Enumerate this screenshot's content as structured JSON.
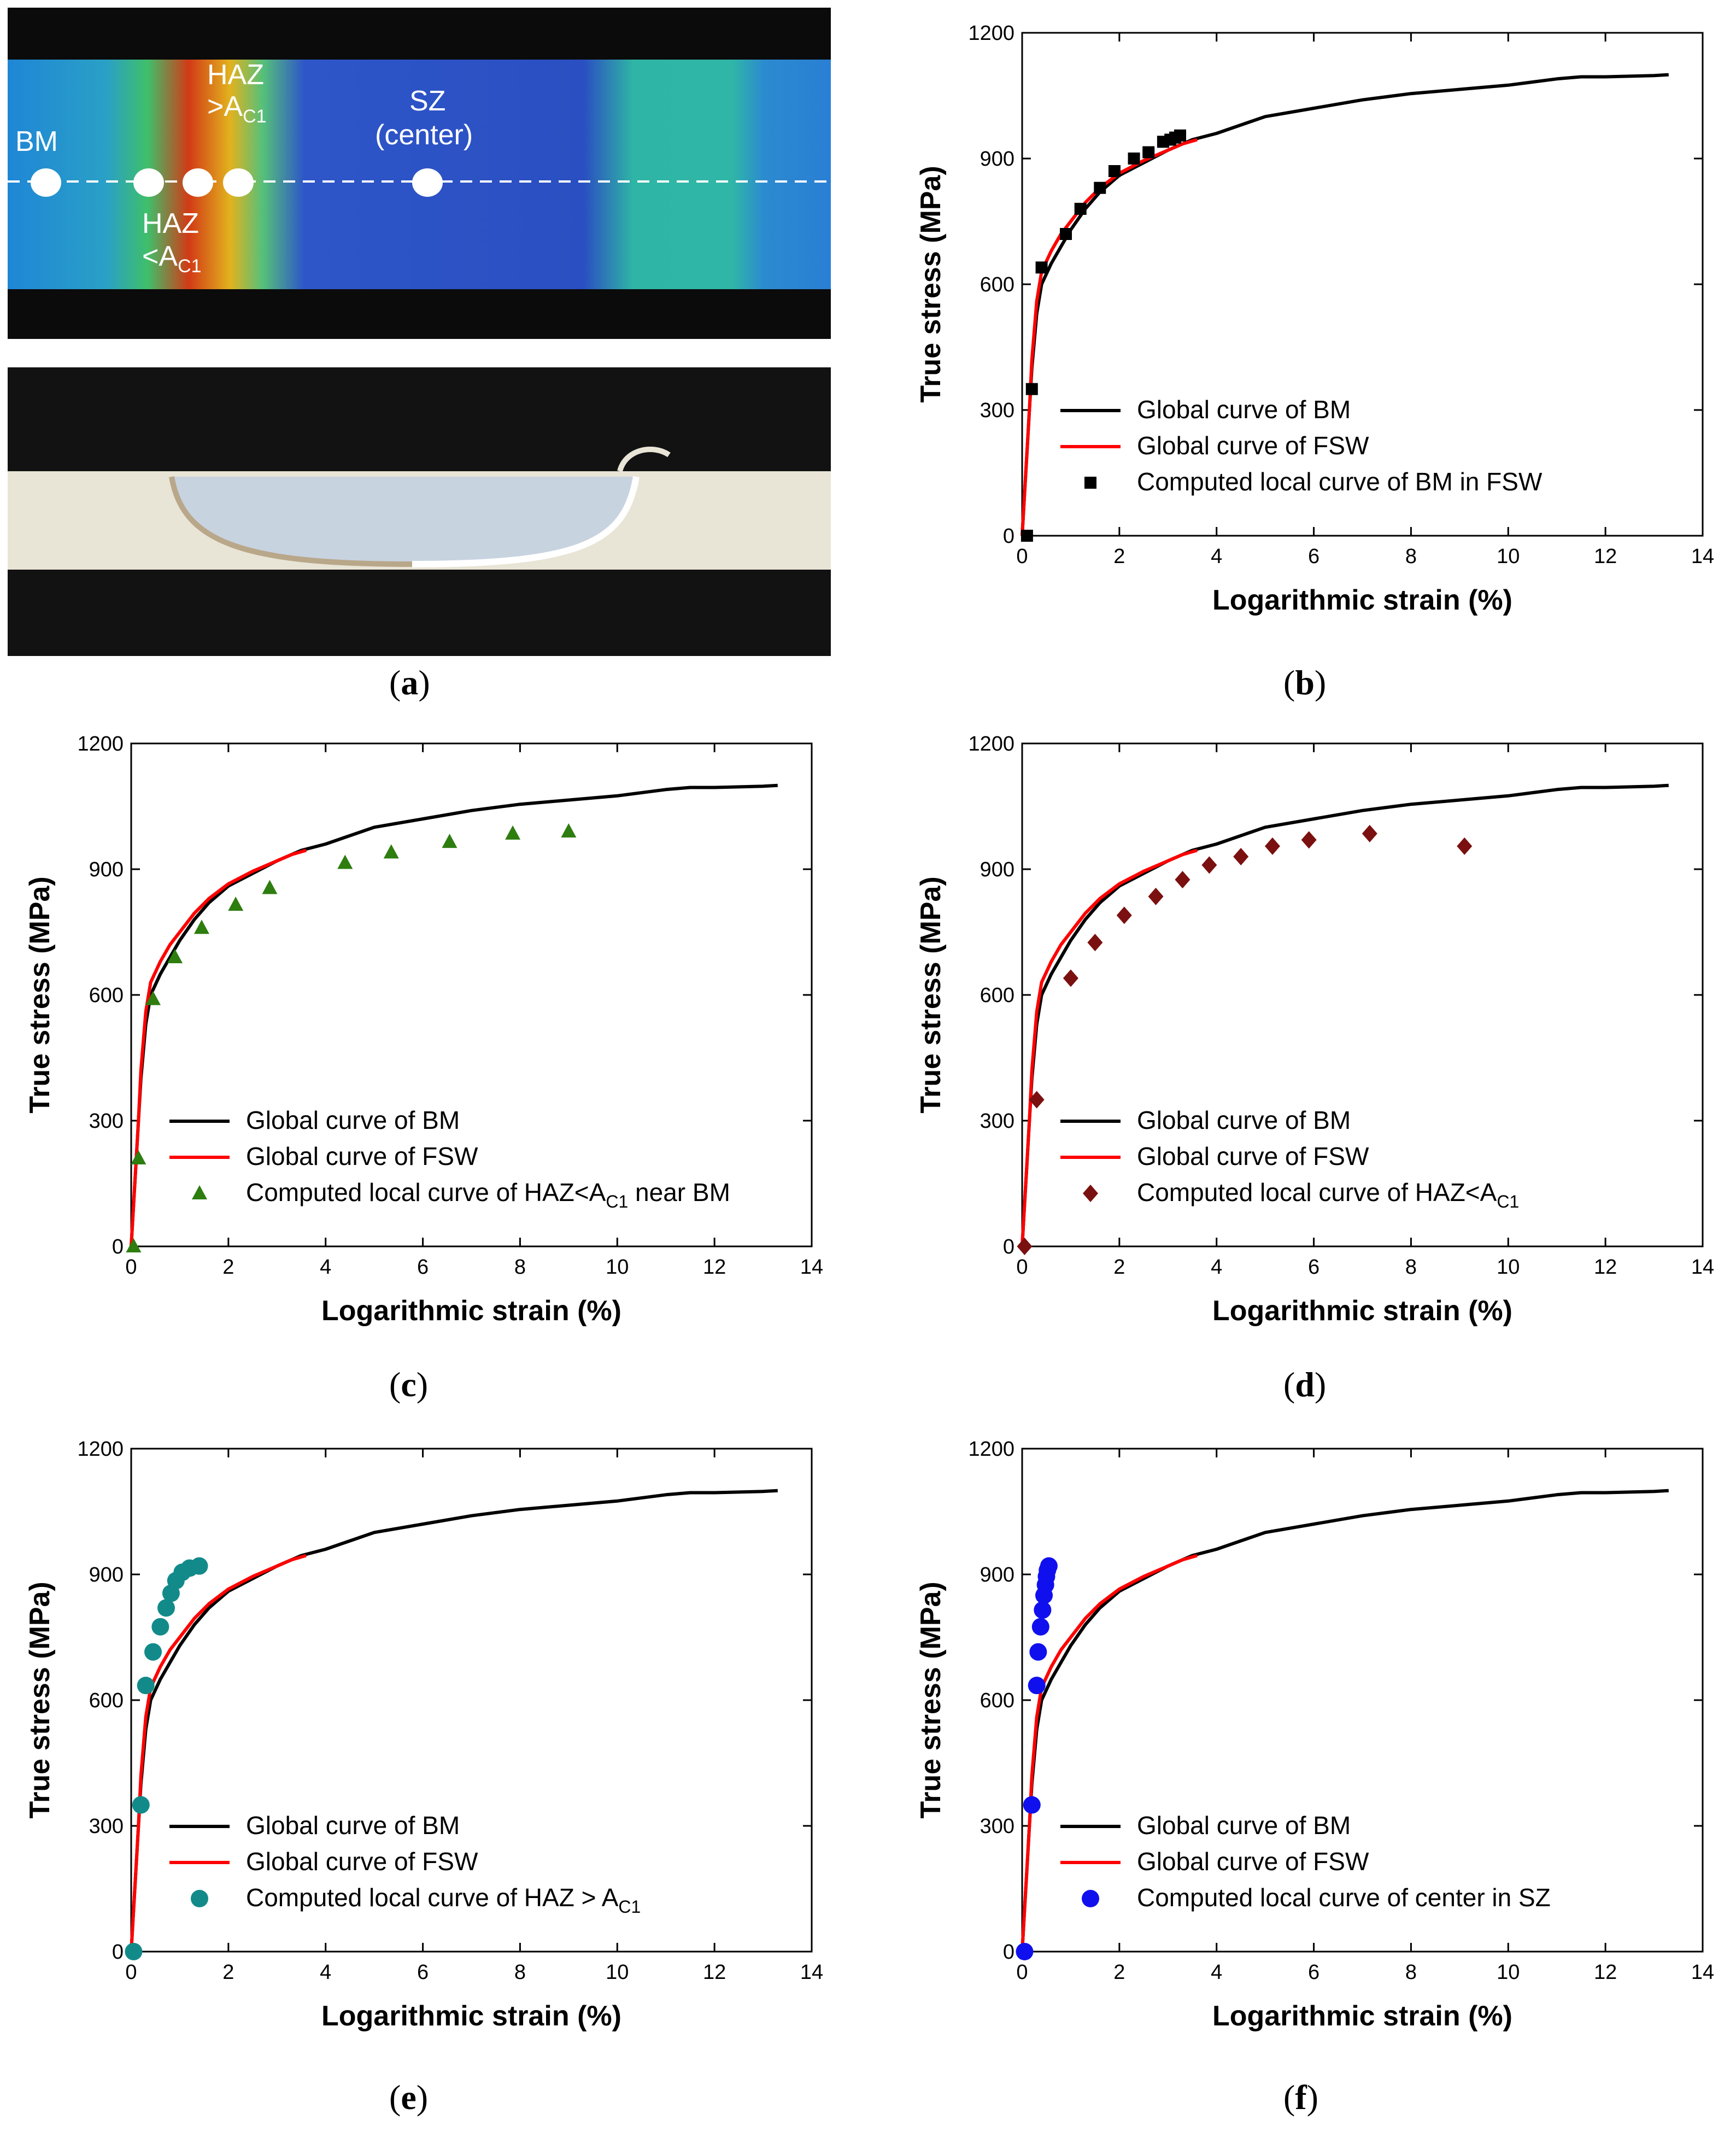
{
  "panel_a": {
    "panel_label": "a",
    "markers": [
      "BM",
      "HAZ <A",
      "HAZ >A",
      "SZ (center)"
    ],
    "labels": {
      "bm": "BM",
      "haz_above_line1": "HAZ",
      "haz_above_line2": ">A",
      "haz_above_sub": "C1",
      "haz_below_line1": "HAZ",
      "haz_below_line2": "<A",
      "haz_below_sub": "C1",
      "sz_line1": "SZ",
      "sz_line2": "(center)"
    }
  },
  "common": {
    "xlabel": "Logarithmic strain (%)",
    "ylabel": "True stress (MPa)",
    "xticks": [
      0,
      2,
      4,
      6,
      8,
      10,
      12,
      14
    ],
    "yticks": [
      0,
      300,
      600,
      900,
      1200
    ],
    "legend_bm": "Global curve of BM",
    "legend_fsw": "Global curve of FSW",
    "color_bm": "#000000",
    "color_fsw": "#ff0000"
  },
  "chart_data": [
    {
      "panel": "b",
      "type": "line",
      "xlabel": "Logarithmic strain (%)",
      "ylabel": "True stress (MPa)",
      "xlim": [
        0,
        14
      ],
      "ylim": [
        0,
        1200
      ],
      "series": [
        {
          "name": "Global curve of BM",
          "style": "line",
          "color": "#000000",
          "x": [
            0,
            0.05,
            0.1,
            0.15,
            0.2,
            0.3,
            0.4,
            0.6,
            0.8,
            1.0,
            1.3,
            1.6,
            2.0,
            2.5,
            3.0,
            3.5,
            4.0,
            5.0,
            6.0,
            7.0,
            8.0,
            9.0,
            10.0,
            11.0,
            11.5,
            12.0,
            13.0,
            13.3
          ],
          "y": [
            0,
            100,
            200,
            300,
            400,
            530,
            600,
            650,
            690,
            730,
            780,
            820,
            860,
            890,
            920,
            945,
            960,
            1000,
            1020,
            1040,
            1055,
            1065,
            1075,
            1090,
            1095,
            1095,
            1098,
            1100
          ]
        },
        {
          "name": "Global curve of FSW",
          "style": "line",
          "color": "#ff0000",
          "x": [
            0,
            0.05,
            0.1,
            0.15,
            0.2,
            0.3,
            0.4,
            0.6,
            0.8,
            1.0,
            1.3,
            1.6,
            2.0,
            2.5,
            3.0,
            3.3,
            3.6
          ],
          "y": [
            0,
            100,
            200,
            300,
            420,
            560,
            630,
            680,
            720,
            750,
            795,
            830,
            865,
            895,
            920,
            935,
            945
          ]
        },
        {
          "name": "Computed local curve of BM in FSW",
          "style": "marker",
          "marker": "square",
          "color": "#000000",
          "x": [
            0.1,
            0.2,
            0.4,
            0.9,
            1.2,
            1.6,
            1.9,
            2.3,
            2.6,
            2.9,
            3.05,
            3.15,
            3.25
          ],
          "y": [
            0,
            350,
            640,
            720,
            780,
            830,
            870,
            900,
            915,
            940,
            945,
            950,
            955
          ]
        }
      ]
    },
    {
      "panel": "c",
      "type": "line",
      "xlabel": "Logarithmic strain (%)",
      "ylabel": "True stress (MPa)",
      "xlim": [
        0,
        14
      ],
      "ylim": [
        0,
        1200
      ],
      "series": [
        {
          "name": "Global curve of BM",
          "style": "line",
          "color": "#000000",
          "x": [
            0,
            0.05,
            0.1,
            0.15,
            0.2,
            0.3,
            0.4,
            0.6,
            0.8,
            1.0,
            1.3,
            1.6,
            2.0,
            2.5,
            3.0,
            3.5,
            4.0,
            5.0,
            6.0,
            7.0,
            8.0,
            9.0,
            10.0,
            11.0,
            11.5,
            12.0,
            13.0,
            13.3
          ],
          "y": [
            0,
            100,
            200,
            300,
            400,
            530,
            600,
            650,
            690,
            730,
            780,
            820,
            860,
            890,
            920,
            945,
            960,
            1000,
            1020,
            1040,
            1055,
            1065,
            1075,
            1090,
            1095,
            1095,
            1098,
            1100
          ]
        },
        {
          "name": "Global curve of FSW",
          "style": "line",
          "color": "#ff0000",
          "x": [
            0,
            0.05,
            0.1,
            0.15,
            0.2,
            0.3,
            0.4,
            0.6,
            0.8,
            1.0,
            1.3,
            1.6,
            2.0,
            2.5,
            3.0,
            3.3,
            3.6
          ],
          "y": [
            0,
            100,
            200,
            300,
            420,
            560,
            630,
            680,
            720,
            750,
            795,
            830,
            865,
            895,
            920,
            935,
            945
          ]
        },
        {
          "name": "Computed local curve of HAZ<A",
          "name_sub": "C1",
          "name_suffix": " near BM",
          "style": "marker",
          "marker": "triangle",
          "color": "#2e7d0f",
          "x": [
            0.05,
            0.15,
            0.45,
            0.9,
            1.45,
            2.15,
            2.85,
            4.4,
            5.35,
            6.55,
            7.85,
            9.0
          ],
          "y": [
            0,
            210,
            590,
            690,
            760,
            815,
            855,
            915,
            940,
            965,
            985,
            990
          ]
        }
      ]
    },
    {
      "panel": "d",
      "type": "line",
      "xlabel": "Logarithmic strain (%)",
      "ylabel": "True stress (MPa)",
      "xlim": [
        0,
        14
      ],
      "ylim": [
        0,
        1200
      ],
      "series": [
        {
          "name": "Global curve of BM",
          "style": "line",
          "color": "#000000",
          "x": [
            0,
            0.05,
            0.1,
            0.15,
            0.2,
            0.3,
            0.4,
            0.6,
            0.8,
            1.0,
            1.3,
            1.6,
            2.0,
            2.5,
            3.0,
            3.5,
            4.0,
            5.0,
            6.0,
            7.0,
            8.0,
            9.0,
            10.0,
            11.0,
            11.5,
            12.0,
            13.0,
            13.3
          ],
          "y": [
            0,
            100,
            200,
            300,
            400,
            530,
            600,
            650,
            690,
            730,
            780,
            820,
            860,
            890,
            920,
            945,
            960,
            1000,
            1020,
            1040,
            1055,
            1065,
            1075,
            1090,
            1095,
            1095,
            1098,
            1100
          ]
        },
        {
          "name": "Global curve of FSW",
          "style": "line",
          "color": "#ff0000",
          "x": [
            0,
            0.05,
            0.1,
            0.15,
            0.2,
            0.3,
            0.4,
            0.6,
            0.8,
            1.0,
            1.3,
            1.6,
            2.0,
            2.5,
            3.0,
            3.3,
            3.6
          ],
          "y": [
            0,
            100,
            200,
            300,
            420,
            560,
            630,
            680,
            720,
            750,
            795,
            830,
            865,
            895,
            920,
            935,
            945
          ]
        },
        {
          "name": "Computed local curve of HAZ<A",
          "name_sub": "C1",
          "name_suffix": "",
          "style": "marker",
          "marker": "diamond",
          "color": "#7b1010",
          "x": [
            0.05,
            0.3,
            1.0,
            1.5,
            2.1,
            2.75,
            3.3,
            3.85,
            4.5,
            5.15,
            5.9,
            7.15,
            9.1
          ],
          "y": [
            0,
            350,
            640,
            725,
            790,
            835,
            875,
            910,
            930,
            955,
            970,
            985,
            955
          ]
        }
      ]
    },
    {
      "panel": "e",
      "type": "line",
      "xlabel": "Logarithmic strain (%)",
      "ylabel": "True stress (MPa)",
      "xlim": [
        0,
        14
      ],
      "ylim": [
        0,
        1200
      ],
      "series": [
        {
          "name": "Global curve of BM",
          "style": "line",
          "color": "#000000",
          "x": [
            0,
            0.05,
            0.1,
            0.15,
            0.2,
            0.3,
            0.4,
            0.6,
            0.8,
            1.0,
            1.3,
            1.6,
            2.0,
            2.5,
            3.0,
            3.5,
            4.0,
            5.0,
            6.0,
            7.0,
            8.0,
            9.0,
            10.0,
            11.0,
            11.5,
            12.0,
            13.0,
            13.3
          ],
          "y": [
            0,
            100,
            200,
            300,
            400,
            530,
            600,
            650,
            690,
            730,
            780,
            820,
            860,
            890,
            920,
            945,
            960,
            1000,
            1020,
            1040,
            1055,
            1065,
            1075,
            1090,
            1095,
            1095,
            1098,
            1100
          ]
        },
        {
          "name": "Global curve of FSW",
          "style": "line",
          "color": "#ff0000",
          "x": [
            0,
            0.05,
            0.1,
            0.15,
            0.2,
            0.3,
            0.4,
            0.6,
            0.8,
            1.0,
            1.3,
            1.6,
            2.0,
            2.5,
            3.0,
            3.3,
            3.6
          ],
          "y": [
            0,
            100,
            200,
            300,
            420,
            560,
            630,
            680,
            720,
            750,
            795,
            830,
            865,
            895,
            920,
            935,
            945
          ]
        },
        {
          "name": "Computed local curve of HAZ > A",
          "name_sub": "C1",
          "name_suffix": "",
          "style": "marker",
          "marker": "circle",
          "color": "#138a8a",
          "x": [
            0.05,
            0.2,
            0.3,
            0.45,
            0.6,
            0.72,
            0.82,
            0.92,
            1.05,
            1.2,
            1.4
          ],
          "y": [
            0,
            350,
            635,
            715,
            775,
            820,
            855,
            885,
            905,
            915,
            920
          ]
        }
      ]
    },
    {
      "panel": "f",
      "type": "line",
      "xlabel": "Logarithmic strain (%)",
      "ylabel": "True stress (MPa)",
      "xlim": [
        0,
        14
      ],
      "ylim": [
        0,
        1200
      ],
      "series": [
        {
          "name": "Global curve of BM",
          "style": "line",
          "color": "#000000",
          "x": [
            0,
            0.05,
            0.1,
            0.15,
            0.2,
            0.3,
            0.4,
            0.6,
            0.8,
            1.0,
            1.3,
            1.6,
            2.0,
            2.5,
            3.0,
            3.5,
            4.0,
            5.0,
            6.0,
            7.0,
            8.0,
            9.0,
            10.0,
            11.0,
            11.5,
            12.0,
            13.0,
            13.3
          ],
          "y": [
            0,
            100,
            200,
            300,
            400,
            530,
            600,
            650,
            690,
            730,
            780,
            820,
            860,
            890,
            920,
            945,
            960,
            1000,
            1020,
            1040,
            1055,
            1065,
            1075,
            1090,
            1095,
            1095,
            1098,
            1100
          ]
        },
        {
          "name": "Global curve of FSW",
          "style": "line",
          "color": "#ff0000",
          "x": [
            0,
            0.05,
            0.1,
            0.15,
            0.2,
            0.3,
            0.4,
            0.6,
            0.8,
            1.0,
            1.3,
            1.6,
            2.0,
            2.5,
            3.0,
            3.3,
            3.6
          ],
          "y": [
            0,
            100,
            200,
            300,
            420,
            560,
            630,
            680,
            720,
            750,
            795,
            830,
            865,
            895,
            920,
            935,
            945
          ]
        },
        {
          "name": "Computed local curve of center in SZ",
          "name_sub": "",
          "name_suffix": "",
          "style": "marker",
          "marker": "circle",
          "color": "#1010ee",
          "x": [
            0.05,
            0.2,
            0.3,
            0.33,
            0.38,
            0.42,
            0.45,
            0.48,
            0.5,
            0.52,
            0.55
          ],
          "y": [
            0,
            350,
            635,
            715,
            775,
            815,
            850,
            875,
            895,
            910,
            920
          ]
        }
      ]
    }
  ]
}
